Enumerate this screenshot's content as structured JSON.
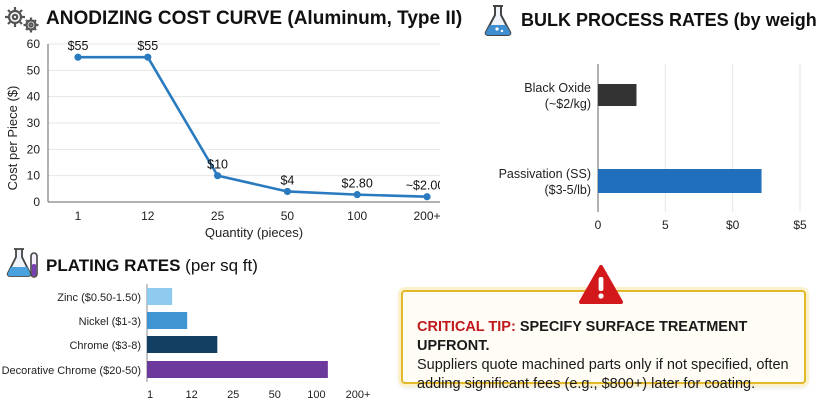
{
  "colors": {
    "line": "#2a7abf",
    "grid": "#e6e6e6",
    "black_oxide": "#333333",
    "passivation": "#1f6fbd",
    "zinc": "#8ecbef",
    "nickel": "#3f95d2",
    "chrome": "#133f63",
    "decorative_chrome": "#6b3a9c",
    "warning": "#d2181b",
    "tip_border": "#e3b82a"
  },
  "icons": {
    "cost_curve": "gears-icon",
    "bulk": "flask-icon",
    "plating": "test-tubes-icon",
    "tip": "warning-triangle-icon"
  },
  "cost_curve": {
    "title": "ANODIZING COST CURVE (Aluminum, Type II)",
    "xlabel": "Quantity (pieces)",
    "ylabel": "Cost per Piece ($)",
    "yticks": [
      "0",
      "10",
      "20",
      "30",
      "40",
      "50",
      "60"
    ]
  },
  "bulk": {
    "title": "BULK PROCESS RATES (by weight)",
    "bars": [
      {
        "label_line1": "Black Oxide",
        "label_line2": "(~$2/kg)"
      },
      {
        "label_line1": "Passivation (SS)",
        "label_line2": "($3-5/lb)"
      }
    ],
    "xticks": [
      "0",
      "5",
      "$0",
      "$5"
    ]
  },
  "plating": {
    "title": "PLATING RATES",
    "subtitle": "(per sq ft)",
    "xticks": [
      "1",
      "12",
      "25",
      "50",
      "100",
      "200+"
    ]
  },
  "tip": {
    "label": "CRITICAL TIP:",
    "headline": "SPECIFY SURFACE TREATMENT UPFRONT.",
    "body": "Suppliers quote machined parts only if not specified, often adding significant fees (e.g., $800+) later for coating."
  },
  "chart_data": [
    {
      "type": "line",
      "title": "ANODIZING COST CURVE (Aluminum, Type II)",
      "xlabel": "Quantity (pieces)",
      "ylabel": "Cost per Piece ($)",
      "categories": [
        "1",
        "12",
        "25",
        "50",
        "100",
        "200+"
      ],
      "values": [
        55,
        55,
        10,
        4,
        2.8,
        2.0
      ],
      "data_labels": [
        "$55",
        "$55",
        "$10",
        "$4",
        "$2.80",
        "~$2.00"
      ],
      "ylim": [
        0,
        60
      ],
      "grid": true
    },
    {
      "type": "bar",
      "orientation": "horizontal",
      "title": "BULK PROCESS RATES (by weight)",
      "categories": [
        "Black Oxide (~$2/kg)",
        "Passivation (SS) ($3-5/lb)"
      ],
      "values": [
        0.8,
        3.4
      ],
      "xlim": [
        0,
        4.2
      ],
      "xtick_labels": [
        "0",
        "5",
        "$0",
        "$5"
      ],
      "grid": true
    },
    {
      "type": "bar",
      "orientation": "horizontal",
      "title": "PLATING RATES (per sq ft)",
      "categories": [
        "Zinc ($0.50-1.50)",
        "Nickel ($1-3)",
        "Chrome ($3-8)",
        "Decorative Chrome ($20-50)"
      ],
      "values": [
        0.5,
        0.8,
        1.4,
        3.6
      ],
      "xlim": [
        0,
        4.2
      ],
      "xtick_labels": [
        "1",
        "12",
        "25",
        "50",
        "100",
        "200+"
      ]
    }
  ]
}
